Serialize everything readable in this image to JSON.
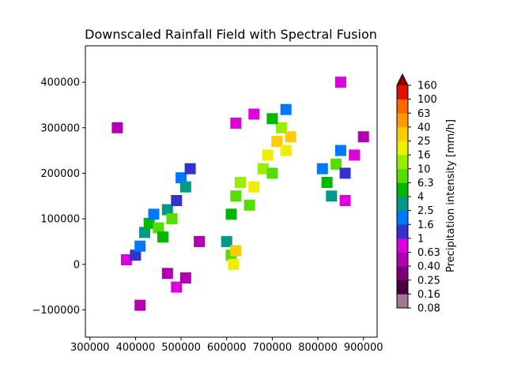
{
  "chart_data": {
    "type": "heatmap",
    "title": "Downscaled Rainfall Field with Spectral Fusion",
    "xlabel": "",
    "ylabel": "",
    "xlim": [
      290000,
      930000
    ],
    "ylim": [
      -160000,
      480000
    ],
    "xticks": [
      {
        "value": 300000,
        "label": "300000"
      },
      {
        "value": 400000,
        "label": "400000"
      },
      {
        "value": 500000,
        "label": "500000"
      },
      {
        "value": 600000,
        "label": "600000"
      },
      {
        "value": 700000,
        "label": "700000"
      },
      {
        "value": 800000,
        "label": "800000"
      },
      {
        "value": 900000,
        "label": "900000"
      }
    ],
    "yticks": [
      {
        "value": -100000,
        "label": "−100000"
      },
      {
        "value": 0,
        "label": "0"
      },
      {
        "value": 100000,
        "label": "100000"
      },
      {
        "value": 200000,
        "label": "200000"
      },
      {
        "value": 300000,
        "label": "300000"
      },
      {
        "value": 400000,
        "label": "400000"
      }
    ],
    "colorbar": {
      "label": "Precipitation intensity [mm/h]",
      "extend": "max",
      "levels": [
        "0.08",
        "0.16",
        "0.25",
        "0.40",
        "0.63",
        "1",
        "1.6",
        "2.5",
        "4",
        "6.3",
        "10",
        "16",
        "25",
        "40",
        "63",
        "100",
        "160"
      ],
      "colors": [
        "#9e7b91",
        "#4a0040",
        "#7a007a",
        "#b000b0",
        "#dd00dd",
        "#3333cc",
        "#0077ff",
        "#009988",
        "#00b800",
        "#55dd00",
        "#99ee00",
        "#eeee00",
        "#ffcc00",
        "#ff9900",
        "#ff6600",
        "#dd1100"
      ],
      "extend_color": "#8b0000"
    },
    "rain_cells": [
      {
        "x": 360000,
        "y": 300000,
        "value": 0.4
      },
      {
        "x": 380000,
        "y": 10000,
        "value": 0.63
      },
      {
        "x": 400000,
        "y": 20000,
        "value": 1
      },
      {
        "x": 410000,
        "y": 40000,
        "value": 1.6
      },
      {
        "x": 420000,
        "y": 70000,
        "value": 2.5
      },
      {
        "x": 430000,
        "y": 90000,
        "value": 4
      },
      {
        "x": 440000,
        "y": 110000,
        "value": 1.6
      },
      {
        "x": 450000,
        "y": 80000,
        "value": 6.3
      },
      {
        "x": 460000,
        "y": 60000,
        "value": 4
      },
      {
        "x": 470000,
        "y": 120000,
        "value": 2.5
      },
      {
        "x": 480000,
        "y": 100000,
        "value": 6.3
      },
      {
        "x": 490000,
        "y": 140000,
        "value": 1
      },
      {
        "x": 500000,
        "y": 190000,
        "value": 1.6
      },
      {
        "x": 510000,
        "y": 170000,
        "value": 2.5
      },
      {
        "x": 520000,
        "y": 210000,
        "value": 1
      },
      {
        "x": 410000,
        "y": -90000,
        "value": 0.4
      },
      {
        "x": 470000,
        "y": -20000,
        "value": 0.4
      },
      {
        "x": 490000,
        "y": -50000,
        "value": 0.63
      },
      {
        "x": 510000,
        "y": -30000,
        "value": 0.4
      },
      {
        "x": 540000,
        "y": 50000,
        "value": 0.4
      },
      {
        "x": 600000,
        "y": 50000,
        "value": 2.5
      },
      {
        "x": 610000,
        "y": 20000,
        "value": 6.3
      },
      {
        "x": 615000,
        "y": 0,
        "value": 16
      },
      {
        "x": 620000,
        "y": 30000,
        "value": 25
      },
      {
        "x": 610000,
        "y": 110000,
        "value": 4
      },
      {
        "x": 620000,
        "y": 150000,
        "value": 6.3
      },
      {
        "x": 630000,
        "y": 180000,
        "value": 10
      },
      {
        "x": 650000,
        "y": 130000,
        "value": 6.3
      },
      {
        "x": 660000,
        "y": 170000,
        "value": 16
      },
      {
        "x": 680000,
        "y": 210000,
        "value": 10
      },
      {
        "x": 690000,
        "y": 240000,
        "value": 16
      },
      {
        "x": 700000,
        "y": 200000,
        "value": 6.3
      },
      {
        "x": 710000,
        "y": 270000,
        "value": 25
      },
      {
        "x": 720000,
        "y": 300000,
        "value": 10
      },
      {
        "x": 730000,
        "y": 250000,
        "value": 16
      },
      {
        "x": 740000,
        "y": 280000,
        "value": 25
      },
      {
        "x": 700000,
        "y": 320000,
        "value": 4
      },
      {
        "x": 730000,
        "y": 340000,
        "value": 1.6
      },
      {
        "x": 660000,
        "y": 330000,
        "value": 0.63
      },
      {
        "x": 620000,
        "y": 310000,
        "value": 0.63
      },
      {
        "x": 810000,
        "y": 210000,
        "value": 1.6
      },
      {
        "x": 820000,
        "y": 180000,
        "value": 4
      },
      {
        "x": 830000,
        "y": 150000,
        "value": 2.5
      },
      {
        "x": 840000,
        "y": 220000,
        "value": 6.3
      },
      {
        "x": 850000,
        "y": 250000,
        "value": 1.6
      },
      {
        "x": 860000,
        "y": 200000,
        "value": 1
      },
      {
        "x": 880000,
        "y": 240000,
        "value": 0.63
      },
      {
        "x": 900000,
        "y": 280000,
        "value": 0.4
      },
      {
        "x": 850000,
        "y": 400000,
        "value": 0.63
      },
      {
        "x": 860000,
        "y": 140000,
        "value": 0.63
      }
    ]
  }
}
